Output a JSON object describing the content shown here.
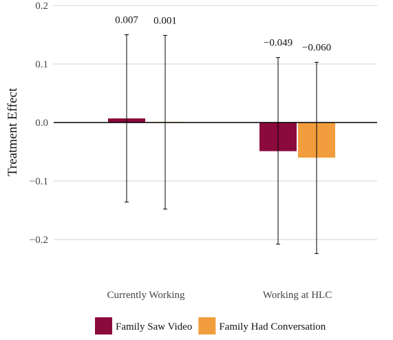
{
  "chart_data": {
    "type": "bar",
    "ylabel": "Treatment Effect",
    "xlabel": "",
    "ylim": [
      -0.25,
      0.2
    ],
    "yticks": [
      0.2,
      0.1,
      0.0,
      -0.1,
      -0.2
    ],
    "ytick_labels": [
      "0.2",
      "0.1",
      "0.0",
      "−0.1",
      "−0.2"
    ],
    "grid": true,
    "legend_position": "bottom",
    "categories": [
      "Currently Working",
      "Working at HLC"
    ],
    "series": [
      {
        "name": "Family Saw Video",
        "color": "#8b0a3c",
        "values": [
          0.007,
          -0.049
        ],
        "labels": [
          "0.007",
          "−0.049"
        ],
        "ci_low": [
          -0.136,
          -0.208
        ],
        "ci_high": [
          0.15,
          0.111
        ]
      },
      {
        "name": "Family Had Conversation",
        "color": "#f29d3d",
        "values": [
          0.001,
          -0.06
        ],
        "labels": [
          "0.001",
          "−0.060"
        ],
        "ci_low": [
          -0.148,
          -0.224
        ],
        "ci_high": [
          0.149,
          0.103
        ]
      }
    ]
  }
}
